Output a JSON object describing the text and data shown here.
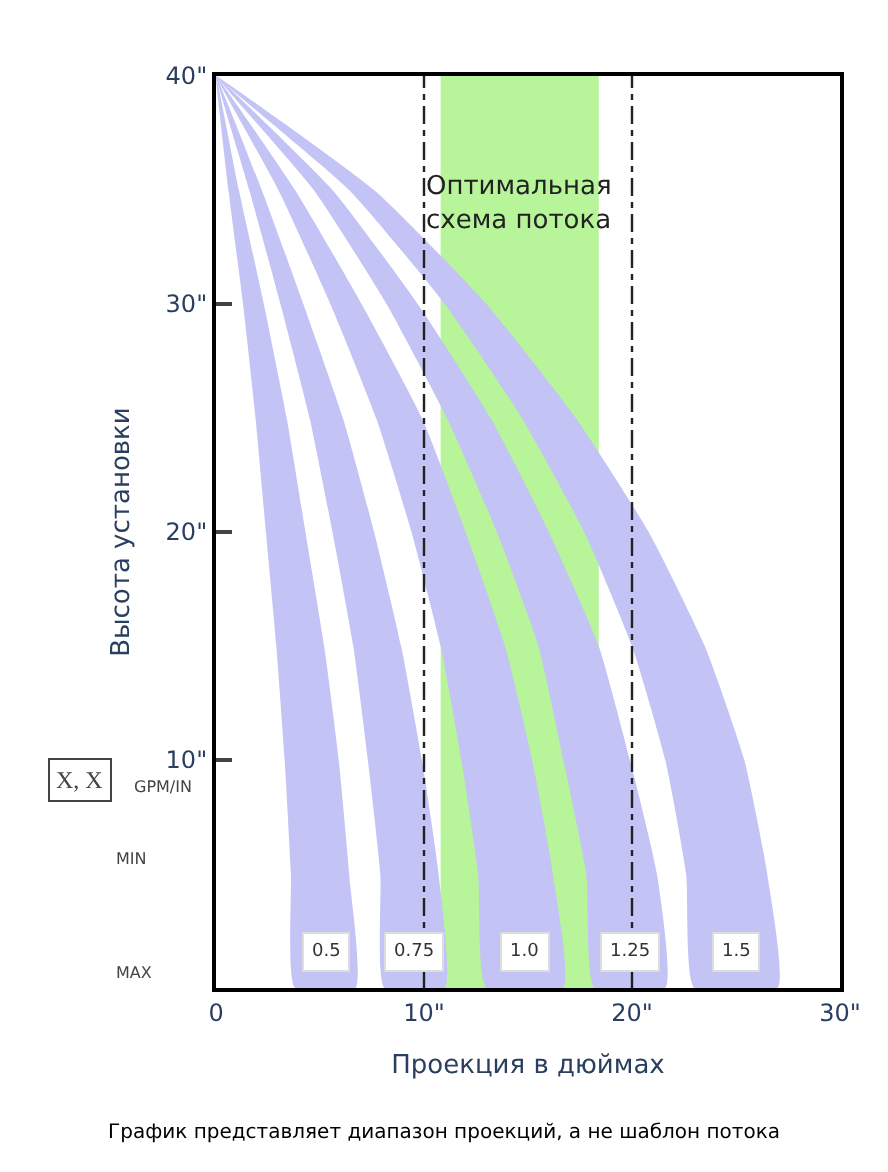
{
  "chart_data": {
    "type": "area",
    "xlabel": "Проекция в дюймах",
    "ylabel": "Высота установки",
    "xlim": [
      0,
      30
    ],
    "ylim": [
      0,
      40
    ],
    "xticks": [
      0,
      {
        "value": 10,
        "label": "10\""
      },
      {
        "value": 20,
        "label": "20\""
      },
      {
        "value": 30,
        "label": "30\""
      }
    ],
    "yticks": [
      {
        "value": 10,
        "label": "10\""
      },
      {
        "value": 20,
        "label": "20\""
      },
      {
        "value": 30,
        "label": "30\""
      },
      {
        "value": 40,
        "label": "40\""
      }
    ],
    "grid": false,
    "series": [
      {
        "name": "0.5",
        "color": "#c3c3f5",
        "x": [
          0,
          1.1,
          2.3,
          3.4,
          4.3,
          5.2,
          5.9,
          6.4,
          6.7,
          3.8,
          3.6,
          3.3,
          2.9,
          2.4,
          1.9,
          1.3,
          0.6,
          0
        ],
        "values": [
          40,
          35,
          30,
          25,
          20,
          15,
          10,
          5,
          0,
          0,
          5,
          10,
          15,
          20,
          25,
          30,
          35,
          40
        ]
      },
      {
        "name": "0.75",
        "color": "#c3c3f5",
        "x": [
          0,
          2.2,
          4.2,
          6.1,
          7.6,
          8.9,
          9.9,
          10.7,
          11,
          8.1,
          7.9,
          7.3,
          6.6,
          5.6,
          4.5,
          3.1,
          1.6,
          0
        ],
        "values": [
          40,
          35,
          30,
          25,
          20,
          15,
          10,
          5,
          0,
          0,
          5,
          10,
          15,
          20,
          25,
          30,
          35,
          40
        ]
      },
      {
        "name": "1.0",
        "color": "#c3c3f5",
        "x": [
          0,
          3.8,
          7.0,
          9.9,
          12.0,
          13.9,
          15.2,
          16.2,
          16.7,
          13,
          12.6,
          11.8,
          10.8,
          9.4,
          7.7,
          5.5,
          3.0,
          0
        ],
        "values": [
          40,
          35,
          30,
          25,
          20,
          15,
          10,
          5,
          0,
          0,
          5,
          10,
          15,
          20,
          25,
          30,
          35,
          40
        ]
      },
      {
        "name": "1.25",
        "color": "#c3c3f5",
        "x": [
          0,
          5.6,
          9.7,
          13.2,
          16.0,
          18.4,
          19.9,
          21.2,
          21.6,
          18.2,
          17.8,
          16.7,
          15.5,
          13.5,
          11.1,
          8.2,
          4.7,
          0
        ],
        "values": [
          40,
          35,
          30,
          25,
          20,
          15,
          10,
          5,
          0,
          0,
          5,
          10,
          15,
          20,
          25,
          30,
          35,
          40
        ]
      },
      {
        "name": "1.5",
        "color": "#c3c3f5",
        "x": [
          0,
          7.6,
          13.0,
          17.3,
          20.8,
          23.5,
          25.4,
          26.5,
          27,
          23,
          22.6,
          21.6,
          20.0,
          17.7,
          14.7,
          11.0,
          6.4,
          0
        ],
        "values": [
          40,
          35,
          30,
          25,
          20,
          15,
          10,
          5,
          0,
          0,
          5,
          10,
          15,
          20,
          25,
          30,
          35,
          40
        ]
      }
    ],
    "bands": [
      {
        "axis": "x",
        "from": 10.8,
        "to": 18.4,
        "label": "Оптимальная схема потока",
        "color": "#b8f59a"
      }
    ],
    "ref_lines": [
      {
        "axis": "x",
        "value": 10,
        "line_style": "dashdot",
        "color": "#222222"
      },
      {
        "axis": "x",
        "value": 20,
        "line_style": "dashdot",
        "color": "#222222"
      }
    ],
    "annotations": [
      "X, X",
      "GPM/IN",
      "MIN",
      "MAX",
      "График представляет диапазон проекций, а не шаблон потока"
    ]
  }
}
